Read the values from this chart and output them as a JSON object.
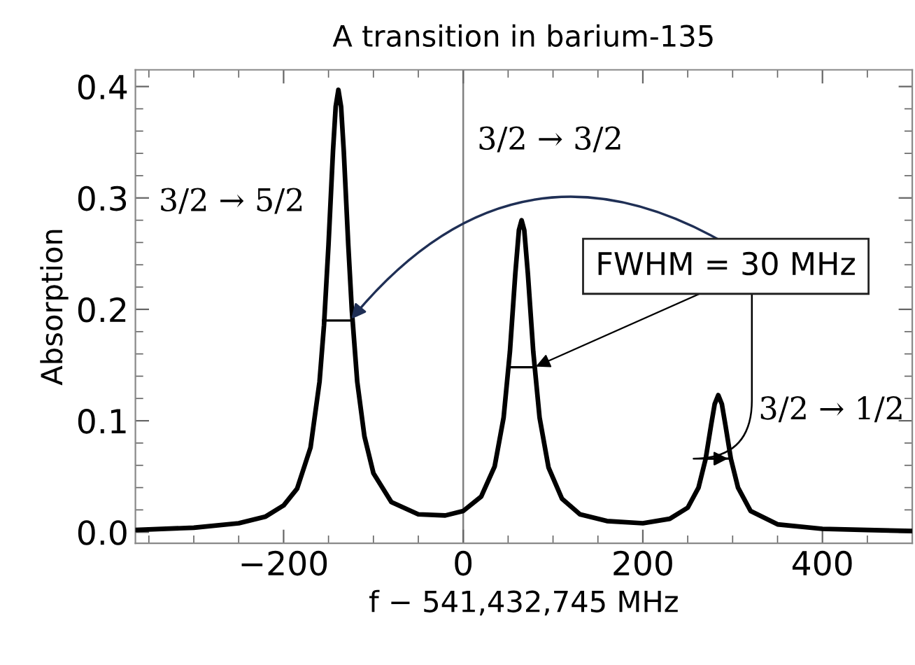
{
  "chart_data": {
    "type": "line",
    "title": "A transition in barium-135",
    "xlabel": "f − 541,432,745 MHz",
    "ylabel": "Absorption",
    "series": [
      {
        "color": "#000000",
        "x": [
          -365,
          -300,
          -250,
          -220,
          -200,
          -185,
          -170,
          -160,
          -155,
          -150,
          -145,
          -142,
          -139,
          -136,
          -133,
          -128,
          -124,
          -118,
          -110,
          -100,
          -80,
          -50,
          -20,
          0,
          20,
          35,
          45,
          52,
          58,
          62,
          65,
          68,
          72,
          78,
          85,
          95,
          110,
          130,
          160,
          200,
          230,
          250,
          262,
          270,
          276,
          280,
          284,
          288,
          292,
          298,
          306,
          320,
          350,
          400,
          450,
          500
        ],
        "values": [
          0.002,
          0.004,
          0.008,
          0.014,
          0.024,
          0.039,
          0.076,
          0.135,
          0.186,
          0.258,
          0.342,
          0.382,
          0.397,
          0.382,
          0.342,
          0.258,
          0.199,
          0.135,
          0.086,
          0.053,
          0.027,
          0.016,
          0.015,
          0.019,
          0.032,
          0.059,
          0.103,
          0.162,
          0.232,
          0.271,
          0.28,
          0.271,
          0.232,
          0.162,
          0.103,
          0.058,
          0.03,
          0.016,
          0.01,
          0.008,
          0.012,
          0.022,
          0.04,
          0.066,
          0.096,
          0.115,
          0.123,
          0.115,
          0.096,
          0.066,
          0.04,
          0.019,
          0.007,
          0.003,
          0.002,
          0.001
        ]
      },
      {
        "color": "#000000",
        "x": [
          -156,
          -126
        ],
        "values": [
          0.19,
          0.19
        ]
      },
      {
        "color": "#000000",
        "x": [
          51,
          79
        ],
        "values": [
          0.148,
          0.148
        ]
      },
      {
        "color": "#000000",
        "x": [
          269,
          297
        ],
        "values": [
          0.066,
          0.066
        ]
      }
    ],
    "xlim": [
      -365,
      500
    ],
    "ylim": [
      -0.01,
      0.415
    ],
    "xticks": [
      -200,
      0,
      200,
      400
    ],
    "yticks": [
      {
        "value": 0,
        "label": "0.0"
      },
      0.1,
      0.2,
      0.3,
      0.4
    ],
    "ref_lines": [
      {
        "axis": "x",
        "value": 0,
        "color": "#808080"
      }
    ],
    "annotations": [
      "3/2 → 5/2",
      "3/2 → 3/2",
      "3/2 → 1/2",
      {
        "text": "FWHM = 30 MHz",
        "x": 79,
        "y": 0.148
      }
    ],
    "grid": false,
    "marker": "none",
    "line_style": "solid"
  }
}
